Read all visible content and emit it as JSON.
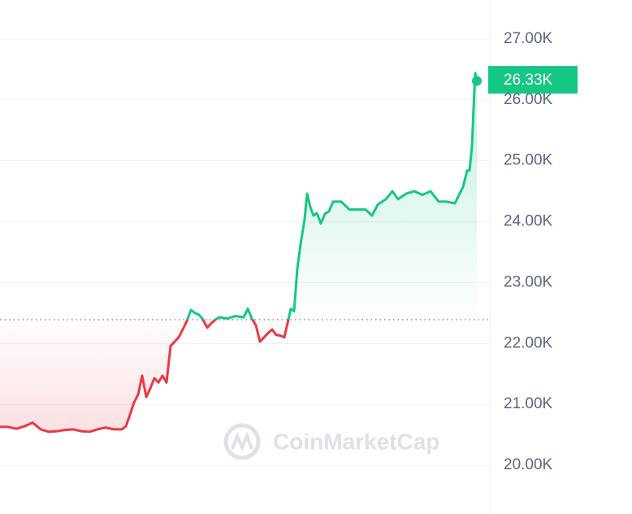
{
  "chart_data": {
    "type": "line",
    "x": [
      0,
      10,
      20,
      30,
      40,
      50,
      60,
      70,
      80,
      90,
      100,
      110,
      120,
      130,
      140,
      150,
      155,
      160,
      165,
      170,
      175,
      180,
      185,
      190,
      195,
      200,
      205,
      210,
      215,
      220,
      225,
      230,
      235,
      240,
      245,
      250,
      255,
      260,
      265,
      270,
      280,
      290,
      300,
      305,
      310,
      315,
      320,
      325,
      330,
      335,
      340,
      345,
      350,
      355,
      358,
      362,
      366,
      370,
      375,
      378,
      382,
      386,
      390,
      395,
      400,
      405,
      410,
      420,
      430,
      440,
      450,
      458,
      465,
      475,
      483,
      490,
      500,
      510,
      520,
      530,
      540,
      550,
      560,
      565,
      570,
      575,
      578,
      581,
      584,
      585,
      587
    ],
    "values": [
      20630,
      20630,
      20600,
      20640,
      20700,
      20590,
      20550,
      20560,
      20580,
      20590,
      20560,
      20550,
      20590,
      20620,
      20590,
      20590,
      20640,
      20830,
      21030,
      21160,
      21470,
      21120,
      21260,
      21430,
      21360,
      21470,
      21360,
      21960,
      22030,
      22100,
      22230,
      22370,
      22550,
      22500,
      22470,
      22390,
      22260,
      22330,
      22390,
      22430,
      22410,
      22450,
      22430,
      22570,
      22410,
      22300,
      22030,
      22100,
      22170,
      22230,
      22140,
      22130,
      22100,
      22390,
      22570,
      22530,
      23230,
      23630,
      24040,
      24460,
      24240,
      24100,
      24140,
      23970,
      24130,
      24170,
      24330,
      24330,
      24200,
      24200,
      24200,
      24100,
      24280,
      24370,
      24500,
      24370,
      24460,
      24500,
      24440,
      24500,
      24330,
      24330,
      24300,
      24440,
      24570,
      24840,
      24840,
      25240,
      26170,
      26440,
      26310
    ],
    "xlim": [
      0,
      587
    ],
    "ylim": [
      19200,
      27640
    ],
    "yticks": [
      {
        "value": 20000,
        "label": "20.00K"
      },
      {
        "value": 21000,
        "label": "21.00K"
      },
      {
        "value": 22000,
        "label": "22.00K"
      },
      {
        "value": 23000,
        "label": "23.00K"
      },
      {
        "value": 24000,
        "label": "24.00K"
      },
      {
        "value": 25000,
        "label": "25.00K"
      },
      {
        "value": 26000,
        "label": "26.00K"
      },
      {
        "value": 27000,
        "label": "27.00K"
      }
    ],
    "grid": true,
    "baseline": 22390,
    "up_color": "#16c784",
    "down_color": "#ea3943",
    "last_price": {
      "value": 26330,
      "label": "26.33K"
    },
    "watermark": "CoinMarketCap"
  }
}
